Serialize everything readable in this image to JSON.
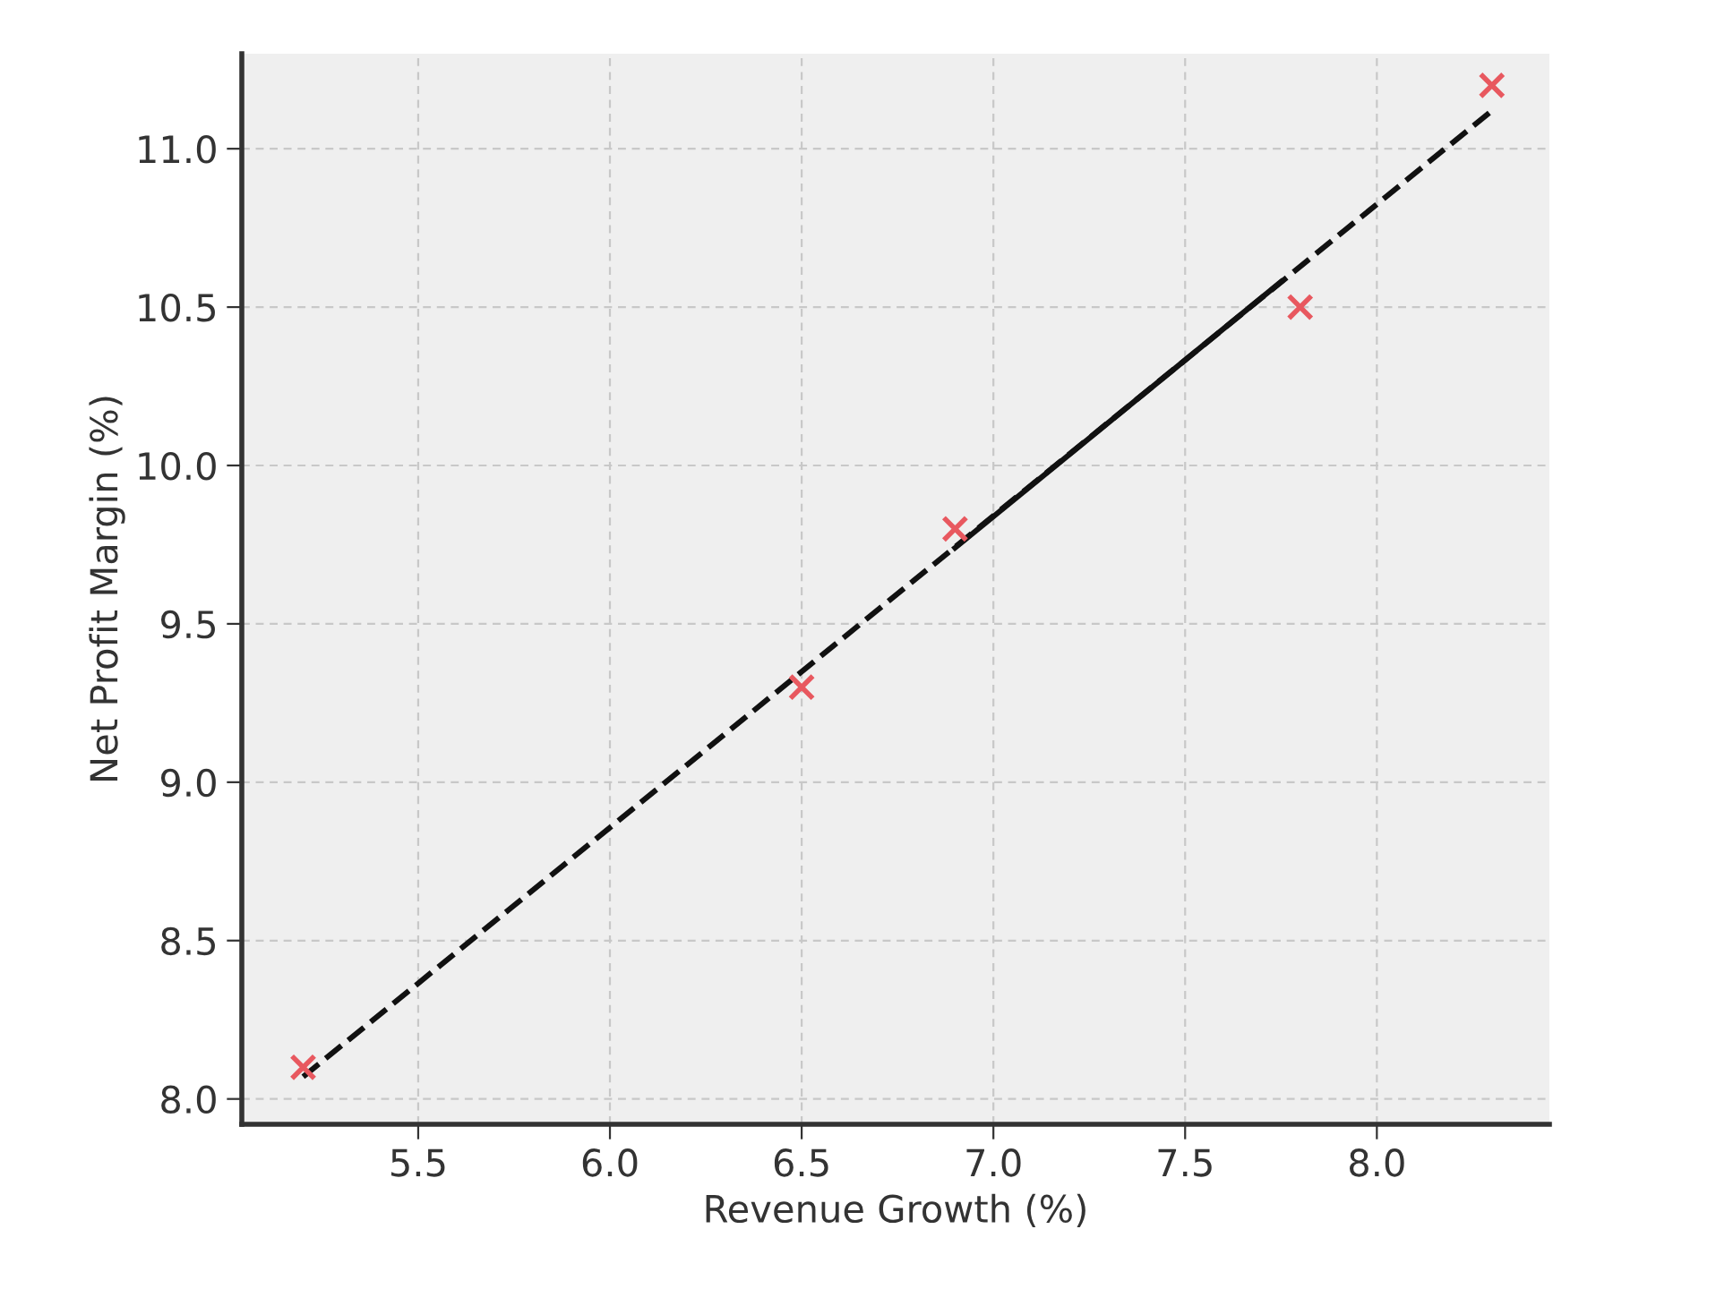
{
  "chart_data": {
    "type": "scatter",
    "xlabel": "Revenue Growth (%)",
    "ylabel": "Net Profit Margin (%)",
    "x": [
      5.2,
      6.5,
      6.9,
      7.8,
      8.3
    ],
    "series": [
      {
        "color": "#e8585f",
        "marker": "cross",
        "values": [
          8.1,
          9.3,
          9.8,
          10.5,
          11.2
        ]
      },
      {
        "type": "line",
        "color": "#111111",
        "line_style": "dashed",
        "marker": "none",
        "x": [
          5.2,
          8.3
        ],
        "values": [
          8.07,
          11.12
        ]
      },
      {
        "type": "line",
        "color": "#111111",
        "line_style": "solid",
        "marker": "none",
        "x": [
          6.9,
          7.75
        ],
        "values": [
          9.74,
          10.58
        ]
      }
    ],
    "xlim": [
      5.04,
      8.45
    ],
    "ylim": [
      7.92,
      11.3
    ],
    "xticks": [
      {
        "value": 5.5,
        "label": "5.5"
      },
      {
        "value": 6.0,
        "label": "6.0"
      },
      {
        "value": 6.5,
        "label": "6.5"
      },
      {
        "value": 7.0,
        "label": "7.0"
      },
      {
        "value": 7.5,
        "label": "7.5"
      },
      {
        "value": 8.0,
        "label": "8.0"
      }
    ],
    "yticks": [
      {
        "value": 8.0,
        "label": "8.0"
      },
      {
        "value": 8.5,
        "label": "8.5"
      },
      {
        "value": 9.0,
        "label": "9.0"
      },
      {
        "value": 9.5,
        "label": "9.5"
      },
      {
        "value": 10.0,
        "label": "10.0"
      },
      {
        "value": 10.5,
        "label": "10.5"
      },
      {
        "value": 11.0,
        "label": "11.0"
      }
    ],
    "grid": true
  }
}
